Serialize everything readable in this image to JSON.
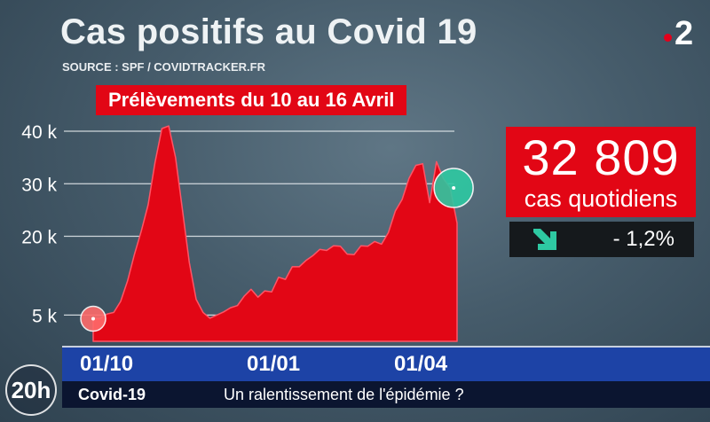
{
  "title": "Cas positifs au Covid 19",
  "source": "SOURCE : SPF / COVIDTRACKER.FR",
  "channel_logo": "2",
  "period_label": "Prélèvements du 10 au 16 Avril",
  "headline_value": "32 809",
  "headline_unit": "cas quotidiens",
  "trend": {
    "icon": "arrow-down-right-icon",
    "value": "- 1,2%"
  },
  "footer": {
    "topic": "Covid-19",
    "text": "Un ralentissement de l'épidémie ?"
  },
  "badge": "20h",
  "chart_data": {
    "type": "area",
    "title": "Cas positifs au Covid 19",
    "xlabel": "",
    "ylabel": "",
    "ylim": [
      0,
      40000
    ],
    "y_ticks": [
      {
        "value": 5000,
        "label": "5 k"
      },
      {
        "value": 20000,
        "label": "20 k"
      },
      {
        "value": 30000,
        "label": "30 k"
      },
      {
        "value": 40000,
        "label": "40 k"
      }
    ],
    "x_ticks": [
      {
        "x": 29,
        "label": "01/10"
      },
      {
        "x": 121,
        "label": "01/01"
      },
      {
        "x": 211,
        "label": "01/04"
      }
    ],
    "grid": true,
    "series": [
      {
        "color": "#e20615",
        "x": [
          0,
          4,
          8,
          12,
          16,
          20,
          24,
          28,
          32,
          36,
          40,
          44,
          48,
          52,
          56,
          60,
          64,
          68,
          72,
          76,
          80,
          84,
          88,
          92,
          96,
          100,
          104,
          108,
          112,
          116,
          120,
          124,
          128,
          132,
          136,
          140,
          144,
          148,
          152,
          156,
          160,
          164,
          168,
          172,
          176,
          180,
          184,
          188,
          192,
          196,
          200,
          204,
          208,
          212
        ],
        "values": [
          4300,
          4300,
          5200,
          5500,
          7600,
          11500,
          16500,
          21000,
          26000,
          34000,
          40500,
          41000,
          35000,
          25000,
          15000,
          8000,
          5500,
          4400,
          5000,
          5600,
          6400,
          6800,
          8600,
          9900,
          8400,
          9600,
          9400,
          12200,
          11800,
          14200,
          14200,
          15400,
          16300,
          17500,
          17300,
          18200,
          18100,
          16600,
          16500,
          18200,
          18100,
          19000,
          18500,
          20700,
          24800,
          27000,
          31000,
          33500,
          33800,
          26400,
          34200,
          31000,
          29200,
          22500
        ]
      }
    ],
    "markers": [
      {
        "x": 0,
        "y": 4300,
        "color": "#ff6b6b"
      },
      {
        "x": 210,
        "y": 29200,
        "color": "#2ec9a2"
      }
    ]
  }
}
